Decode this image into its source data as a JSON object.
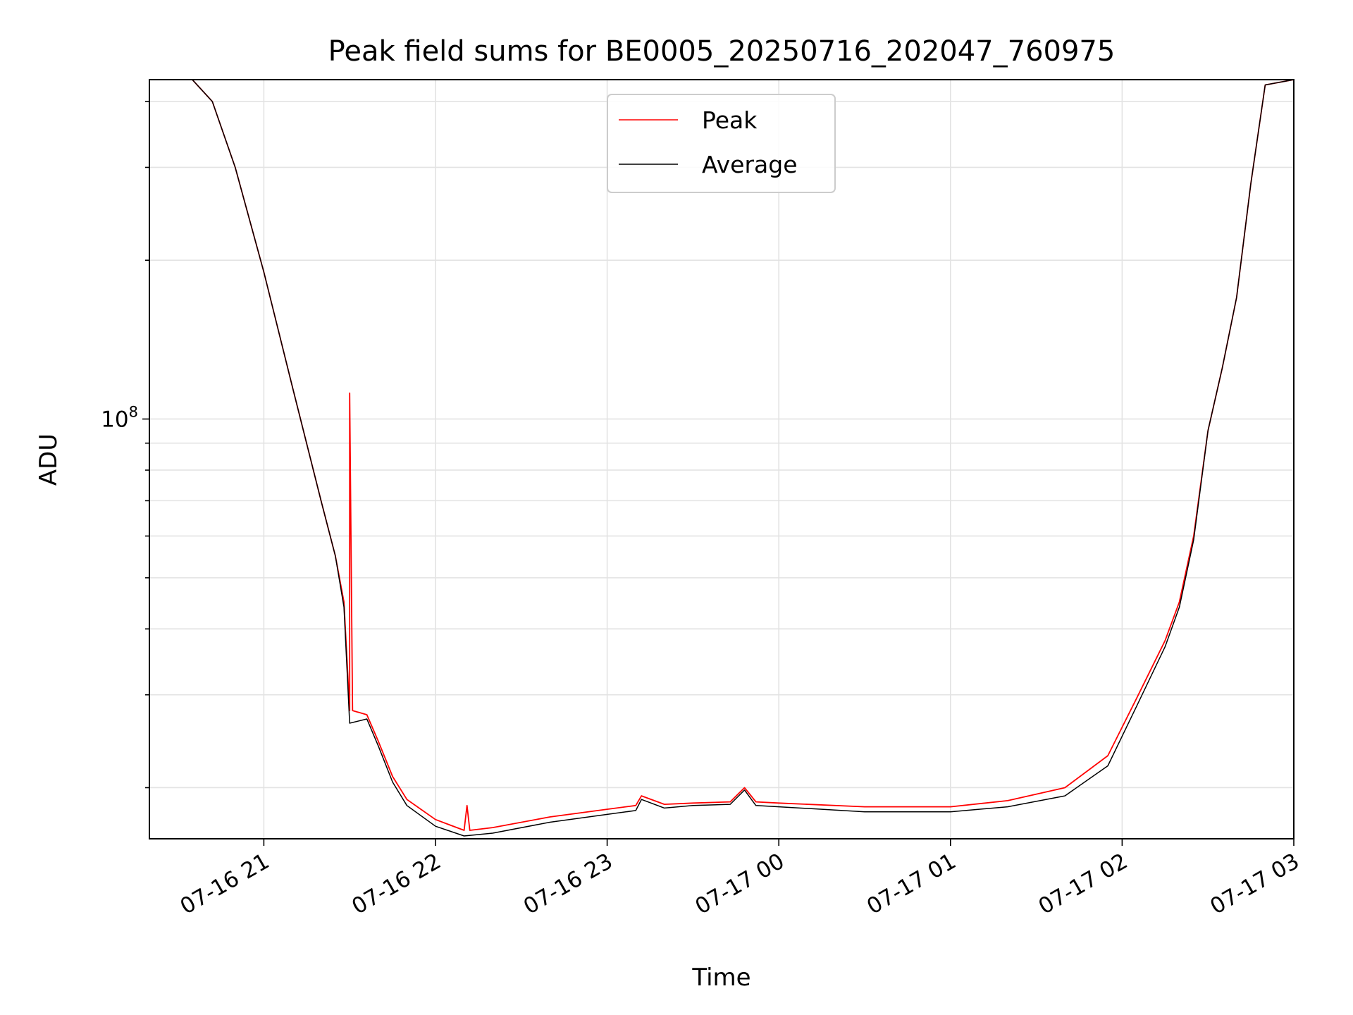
{
  "chart_data": {
    "type": "line",
    "title": "Peak field sums for BE0005_20250716_202047_760975",
    "xlabel": "Time",
    "ylabel": "ADU",
    "yscale": "log",
    "grid": true,
    "legend_position": "top-center",
    "xlim": [
      "2025-07-16 20:20",
      "2025-07-17 03:00"
    ],
    "ylim": [
      16000000,
      440000000
    ],
    "x_ticks": [
      {
        "value": "2025-07-16 21:00",
        "label": "07-16 21"
      },
      {
        "value": "2025-07-16 22:00",
        "label": "07-16 22"
      },
      {
        "value": "2025-07-16 23:00",
        "label": "07-16 23"
      },
      {
        "value": "2025-07-17 00:00",
        "label": "07-17 00"
      },
      {
        "value": "2025-07-17 01:00",
        "label": "07-17 01"
      },
      {
        "value": "2025-07-17 02:00",
        "label": "07-17 02"
      },
      {
        "value": "2025-07-17 03:00",
        "label": "07-17 03"
      }
    ],
    "y_ticks": [
      {
        "value": 100000000,
        "label": "10",
        "exponent": "8"
      }
    ],
    "series": [
      {
        "name": "Peak",
        "color": "#ff0000",
        "points": [
          [
            "2025-07-16 20:20",
            440000000
          ],
          [
            "2025-07-16 20:35",
            440000000
          ],
          [
            "2025-07-16 20:42",
            400000000
          ],
          [
            "2025-07-16 20:50",
            300000000
          ],
          [
            "2025-07-16 21:00",
            190000000
          ],
          [
            "2025-07-16 21:10",
            115000000
          ],
          [
            "2025-07-16 21:20",
            70000000
          ],
          [
            "2025-07-16 21:25",
            55000000
          ],
          [
            "2025-07-16 21:28",
            45000000
          ],
          [
            "2025-07-16 21:30",
            28000000
          ],
          [
            "2025-07-16 21:30",
            112000000
          ],
          [
            "2025-07-16 21:31",
            28000000
          ],
          [
            "2025-07-16 21:36",
            27500000
          ],
          [
            "2025-07-16 21:40",
            24500000
          ],
          [
            "2025-07-16 21:45",
            21000000
          ],
          [
            "2025-07-16 21:50",
            19000000
          ],
          [
            "2025-07-16 22:00",
            17400000
          ],
          [
            "2025-07-16 22:10",
            16600000
          ],
          [
            "2025-07-16 22:11",
            18500000
          ],
          [
            "2025-07-16 22:12",
            16600000
          ],
          [
            "2025-07-16 22:20",
            16800000
          ],
          [
            "2025-07-16 22:40",
            17600000
          ],
          [
            "2025-07-16 23:00",
            18200000
          ],
          [
            "2025-07-16 23:10",
            18500000
          ],
          [
            "2025-07-16 23:12",
            19300000
          ],
          [
            "2025-07-16 23:20",
            18600000
          ],
          [
            "2025-07-16 23:30",
            18700000
          ],
          [
            "2025-07-16 23:43",
            18800000
          ],
          [
            "2025-07-16 23:48",
            20000000
          ],
          [
            "2025-07-16 23:52",
            18800000
          ],
          [
            "2025-07-17 00:00",
            18700000
          ],
          [
            "2025-07-17 00:30",
            18400000
          ],
          [
            "2025-07-17 01:00",
            18400000
          ],
          [
            "2025-07-17 01:20",
            18900000
          ],
          [
            "2025-07-17 01:40",
            20000000
          ],
          [
            "2025-07-17 01:55",
            23000000
          ],
          [
            "2025-07-17 02:05",
            29500000
          ],
          [
            "2025-07-17 02:15",
            38000000
          ],
          [
            "2025-07-17 02:20",
            45000000
          ],
          [
            "2025-07-17 02:25",
            60000000
          ],
          [
            "2025-07-17 02:30",
            95000000
          ],
          [
            "2025-07-17 02:35",
            125000000
          ],
          [
            "2025-07-17 02:40",
            170000000
          ],
          [
            "2025-07-17 02:45",
            280000000
          ],
          [
            "2025-07-17 02:50",
            430000000
          ],
          [
            "2025-07-17 03:00",
            440000000
          ]
        ]
      },
      {
        "name": "Average",
        "color": "#000000",
        "points": [
          [
            "2025-07-16 20:20",
            440000000
          ],
          [
            "2025-07-16 20:35",
            440000000
          ],
          [
            "2025-07-16 20:42",
            400000000
          ],
          [
            "2025-07-16 20:50",
            300000000
          ],
          [
            "2025-07-16 21:00",
            190000000
          ],
          [
            "2025-07-16 21:10",
            115000000
          ],
          [
            "2025-07-16 21:20",
            70000000
          ],
          [
            "2025-07-16 21:25",
            55000000
          ],
          [
            "2025-07-16 21:28",
            44000000
          ],
          [
            "2025-07-16 21:30",
            26500000
          ],
          [
            "2025-07-16 21:36",
            27000000
          ],
          [
            "2025-07-16 21:40",
            24000000
          ],
          [
            "2025-07-16 21:45",
            20500000
          ],
          [
            "2025-07-16 21:50",
            18500000
          ],
          [
            "2025-07-16 22:00",
            16900000
          ],
          [
            "2025-07-16 22:10",
            16200000
          ],
          [
            "2025-07-16 22:20",
            16400000
          ],
          [
            "2025-07-16 22:40",
            17200000
          ],
          [
            "2025-07-16 23:00",
            17800000
          ],
          [
            "2025-07-16 23:10",
            18100000
          ],
          [
            "2025-07-16 23:12",
            19000000
          ],
          [
            "2025-07-16 23:20",
            18300000
          ],
          [
            "2025-07-16 23:30",
            18500000
          ],
          [
            "2025-07-16 23:43",
            18600000
          ],
          [
            "2025-07-16 23:48",
            19800000
          ],
          [
            "2025-07-16 23:52",
            18500000
          ],
          [
            "2025-07-17 00:00",
            18400000
          ],
          [
            "2025-07-17 00:30",
            18000000
          ],
          [
            "2025-07-17 01:00",
            18000000
          ],
          [
            "2025-07-17 01:20",
            18400000
          ],
          [
            "2025-07-17 01:40",
            19300000
          ],
          [
            "2025-07-17 01:55",
            22000000
          ],
          [
            "2025-07-17 02:05",
            28500000
          ],
          [
            "2025-07-17 02:15",
            37000000
          ],
          [
            "2025-07-17 02:20",
            44000000
          ],
          [
            "2025-07-17 02:25",
            59000000
          ],
          [
            "2025-07-17 02:30",
            95000000
          ],
          [
            "2025-07-17 02:35",
            125000000
          ],
          [
            "2025-07-17 02:40",
            170000000
          ],
          [
            "2025-07-17 02:45",
            280000000
          ],
          [
            "2025-07-17 02:50",
            430000000
          ],
          [
            "2025-07-17 03:00",
            440000000
          ]
        ]
      }
    ]
  }
}
